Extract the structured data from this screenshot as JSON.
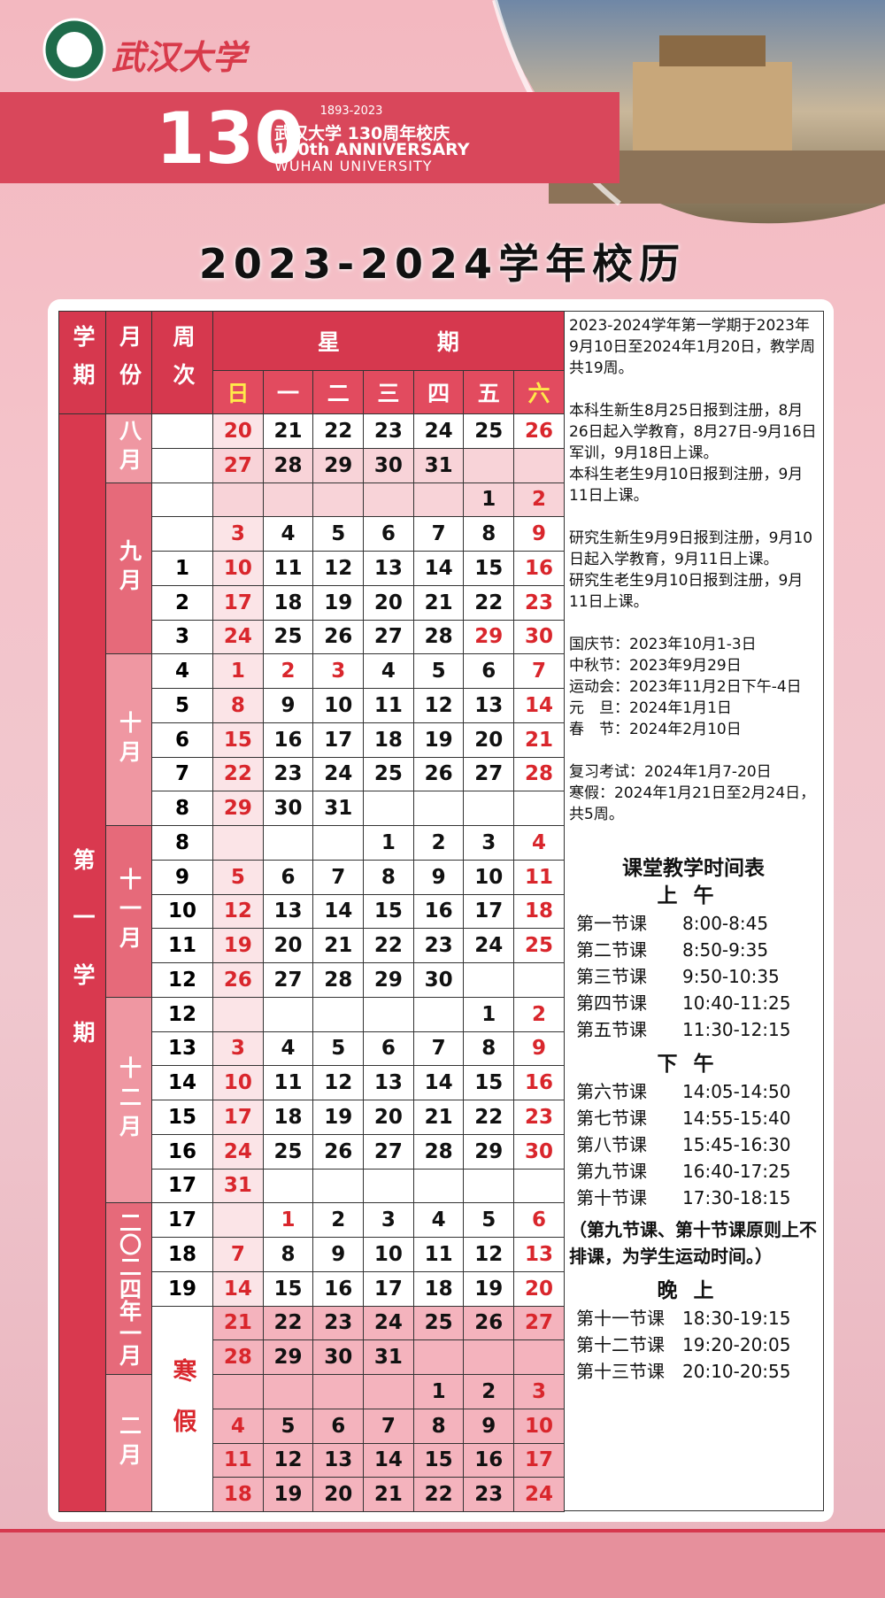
{
  "header": {
    "logo_text": "武汉大学",
    "years": "1893-2023",
    "big_number": "130",
    "celebration": "武汉大学 130周年校庆",
    "anniversary": "130th ANNIVERSARY",
    "university": "WUHAN UNIVERSITY"
  },
  "title": "2023-2024学年校历",
  "calendar": {
    "headers": {
      "term": "学期",
      "month": "月份",
      "week": "周次",
      "weekday": "星期"
    },
    "weekdays": [
      "日",
      "一",
      "二",
      "三",
      "四",
      "五",
      "六"
    ],
    "term_label": "第一学期",
    "vacation_label": "寒假",
    "months": [
      {
        "label": "八月",
        "rows": [
          {
            "week": null,
            "days": [
              20,
              21,
              22,
              23,
              24,
              25,
              26
            ]
          },
          {
            "week": null,
            "days": [
              27,
              28,
              29,
              30,
              31,
              null,
              null
            ],
            "shade": true
          }
        ]
      },
      {
        "label": "九月",
        "rows": [
          {
            "week": null,
            "days": [
              null,
              null,
              null,
              null,
              null,
              1,
              2
            ],
            "shade": true
          },
          {
            "week": null,
            "days": [
              3,
              4,
              5,
              6,
              7,
              8,
              9
            ]
          },
          {
            "week": 1,
            "days": [
              10,
              11,
              12,
              13,
              14,
              15,
              16
            ]
          },
          {
            "week": 2,
            "days": [
              17,
              18,
              19,
              20,
              21,
              22,
              23
            ]
          },
          {
            "week": 3,
            "days": [
              24,
              25,
              26,
              27,
              28,
              29,
              30
            ],
            "holidays": [
              5
            ]
          }
        ]
      },
      {
        "label": "十月",
        "rows": [
          {
            "week": 4,
            "days": [
              1,
              2,
              3,
              4,
              5,
              6,
              7
            ],
            "holidays": [
              1,
              2
            ]
          },
          {
            "week": 5,
            "days": [
              8,
              9,
              10,
              11,
              12,
              13,
              14
            ]
          },
          {
            "week": 6,
            "days": [
              15,
              16,
              17,
              18,
              19,
              20,
              21
            ]
          },
          {
            "week": 7,
            "days": [
              22,
              23,
              24,
              25,
              26,
              27,
              28
            ]
          },
          {
            "week": 8,
            "days": [
              29,
              30,
              31,
              null,
              null,
              null,
              null
            ]
          }
        ]
      },
      {
        "label": "十一月",
        "rows": [
          {
            "week": 8,
            "days": [
              null,
              null,
              null,
              1,
              2,
              3,
              4
            ]
          },
          {
            "week": 9,
            "days": [
              5,
              6,
              7,
              8,
              9,
              10,
              11
            ]
          },
          {
            "week": 10,
            "days": [
              12,
              13,
              14,
              15,
              16,
              17,
              18
            ]
          },
          {
            "week": 11,
            "days": [
              19,
              20,
              21,
              22,
              23,
              24,
              25
            ]
          },
          {
            "week": 12,
            "days": [
              26,
              27,
              28,
              29,
              30,
              null,
              null
            ]
          }
        ]
      },
      {
        "label": "十二月",
        "rows": [
          {
            "week": 12,
            "days": [
              null,
              null,
              null,
              null,
              null,
              1,
              2
            ]
          },
          {
            "week": 13,
            "days": [
              3,
              4,
              5,
              6,
              7,
              8,
              9
            ]
          },
          {
            "week": 14,
            "days": [
              10,
              11,
              12,
              13,
              14,
              15,
              16
            ]
          },
          {
            "week": 15,
            "days": [
              17,
              18,
              19,
              20,
              21,
              22,
              23
            ]
          },
          {
            "week": 16,
            "days": [
              24,
              25,
              26,
              27,
              28,
              29,
              30
            ]
          },
          {
            "week": 17,
            "days": [
              31,
              null,
              null,
              null,
              null,
              null,
              null
            ]
          }
        ]
      },
      {
        "label": "二〇二四年一月",
        "rows": [
          {
            "week": 17,
            "days": [
              null,
              1,
              2,
              3,
              4,
              5,
              6
            ],
            "holidays": [
              1
            ]
          },
          {
            "week": 18,
            "days": [
              7,
              8,
              9,
              10,
              11,
              12,
              13
            ]
          },
          {
            "week": 19,
            "days": [
              14,
              15,
              16,
              17,
              18,
              19,
              20
            ]
          },
          {
            "week": null,
            "days": [
              21,
              22,
              23,
              24,
              25,
              26,
              27
            ],
            "vacation": true
          },
          {
            "week": null,
            "days": [
              28,
              29,
              30,
              31,
              null,
              null,
              null
            ],
            "vacation": true
          }
        ]
      },
      {
        "label": "二月",
        "rows": [
          {
            "week": null,
            "days": [
              null,
              null,
              null,
              null,
              1,
              2,
              3
            ],
            "vacation": true
          },
          {
            "week": null,
            "days": [
              4,
              5,
              6,
              7,
              8,
              9,
              10
            ],
            "vacation": true
          },
          {
            "week": null,
            "days": [
              11,
              12,
              13,
              14,
              15,
              16,
              17
            ],
            "vacation": true
          },
          {
            "week": null,
            "days": [
              18,
              19,
              20,
              21,
              22,
              23,
              24
            ],
            "vacation": true
          }
        ]
      }
    ]
  },
  "notes": {
    "groups": [
      [
        "2023-2024学年第一学期于2023年9月10日至2024年1月20日，教学周共19周。"
      ],
      [
        "本科生新生8月25日报到注册，8月26日起入学教育，8月27日-9月16日军训，9月18日上课。",
        "本科生老生9月10日报到注册，9月11日上课。"
      ],
      [
        "研究生新生9月9日报到注册，9月10日起入学教育，9月11日上课。",
        "研究生老生9月10日报到注册，9月11日上课。"
      ],
      [
        "国庆节：2023年10月1-3日",
        "中秋节：2023年9月29日",
        "运动会：2023年11月2日下午-4日",
        "元　旦：2024年1月1日",
        "春　节：2024年2月10日"
      ],
      [
        "复习考试：2024年1月7-20日",
        "寒假：2024年1月21日至2月24日，共5周。"
      ]
    ]
  },
  "schedule": {
    "title": "课堂教学时间表",
    "sections": [
      {
        "label": "上午",
        "periods": [
          [
            "第一节课",
            "8:00-8:45"
          ],
          [
            "第二节课",
            "8:50-9:35"
          ],
          [
            "第三节课",
            "9:50-10:35"
          ],
          [
            "第四节课",
            "10:40-11:25"
          ],
          [
            "第五节课",
            "11:30-12:15"
          ]
        ]
      },
      {
        "label": "下午",
        "periods": [
          [
            "第六节课",
            "14:05-14:50"
          ],
          [
            "第七节课",
            "14:55-15:40"
          ],
          [
            "第八节课",
            "15:45-16:30"
          ],
          [
            "第九节课",
            "16:40-17:25"
          ],
          [
            "第十节课",
            "17:30-18:15"
          ]
        ],
        "note": "（第九节课、第十节课原则上不排课，为学生运动时间。）"
      },
      {
        "label": "晚上",
        "periods": [
          [
            "第十一节课",
            "18:30-19:15"
          ],
          [
            "第十二节课",
            "19:20-20:05"
          ],
          [
            "第十三节课",
            "20:10-20:55"
          ]
        ]
      }
    ]
  }
}
